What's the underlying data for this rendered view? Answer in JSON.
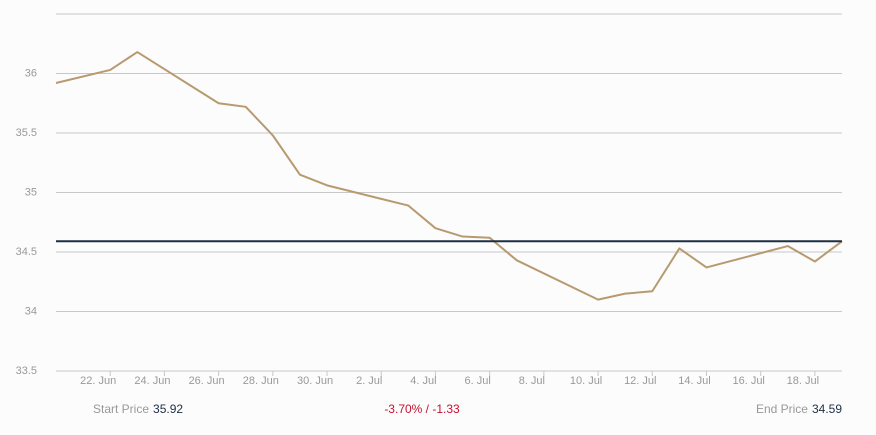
{
  "chart_data": {
    "type": "line",
    "x": [
      "20. Jun",
      "22. Jun",
      "23. Jun",
      "26. Jun",
      "27. Jun",
      "28. Jun",
      "29. Jun",
      "30. Jun",
      "3. Jul",
      "4. Jul",
      "5. Jul",
      "6. Jul",
      "7. Jul",
      "10. Jul",
      "11. Jul",
      "12. Jul",
      "13. Jul",
      "14. Jul",
      "17. Jul",
      "18. Jul",
      "19. Jul"
    ],
    "series": [
      {
        "color": "#b89a70",
        "values": [
          35.92,
          36.03,
          36.18,
          35.75,
          35.72,
          35.48,
          35.15,
          35.06,
          34.89,
          34.7,
          34.63,
          34.62,
          34.43,
          34.1,
          34.15,
          34.17,
          34.53,
          34.37,
          34.55,
          34.42,
          34.59
        ]
      }
    ],
    "xlim": [
      "20. Jun",
      "19. Jul"
    ],
    "xticks": [
      "22. Jun",
      "24. Jun",
      "26. Jun",
      "28. Jun",
      "30. Jun",
      "2. Jul",
      "4. Jul",
      "6. Jul",
      "8. Jul",
      "10. Jul",
      "12. Jul",
      "14. Jul",
      "16. Jul",
      "18. Jul"
    ],
    "ylim": [
      33.5,
      36.5
    ],
    "yticks": [
      33.5,
      34,
      34.5,
      35,
      35.5,
      36
    ],
    "grid": true,
    "reference_color": "#1d2f45",
    "start_price_label": "Start Price",
    "start_price": 35.92,
    "change_label": "-3.70% / -1.33",
    "end_price_label": "End Price",
    "end_price": 34.59
  }
}
